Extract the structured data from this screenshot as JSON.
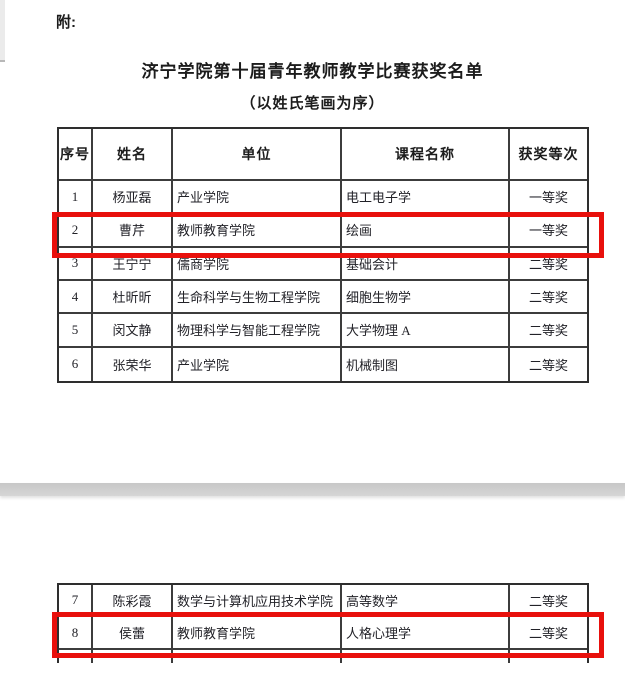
{
  "page": {
    "attachment_label": "附:",
    "title": "济宁学院第十届青年教师教学比赛获奖名单",
    "subtitle": "（以姓氏笔画为序）"
  },
  "table1": {
    "headers": [
      "序号",
      "姓名",
      "单位",
      "课程名称",
      "获奖等次"
    ],
    "rows": [
      {
        "no": "1",
        "name": "杨亚磊",
        "unit": "产业学院",
        "course": "电工电子学",
        "award": "一等奖",
        "highlighted": false
      },
      {
        "no": "2",
        "name": "曹芹",
        "unit": "教师教育学院",
        "course": "绘画",
        "award": "一等奖",
        "highlighted": true
      },
      {
        "no": "3",
        "name": "王宁宁",
        "unit": "儒商学院",
        "course": "基础会计",
        "award": "二等奖",
        "highlighted": false
      },
      {
        "no": "4",
        "name": "杜昕昕",
        "unit": "生命科学与生物工程学院",
        "course": "细胞生物学",
        "award": "二等奖",
        "highlighted": false
      },
      {
        "no": "5",
        "name": "闵文静",
        "unit": "物理科学与智能工程学院",
        "course": "大学物理 A",
        "award": "二等奖",
        "highlighted": false
      },
      {
        "no": "6",
        "name": "张荣华",
        "unit": "产业学院",
        "course": "机械制图",
        "award": "二等奖",
        "highlighted": false
      }
    ]
  },
  "table2": {
    "rows": [
      {
        "no": "7",
        "name": "陈彩霞",
        "unit": "数学与计算机应用技术学院",
        "course": "高等数学",
        "award": "二等奖",
        "highlighted": false
      },
      {
        "no": "8",
        "name": "侯蕾",
        "unit": "教师教育学院",
        "course": "人格心理学",
        "award": "二等奖",
        "highlighted": true
      }
    ]
  },
  "colors": {
    "highlight_border": "#e8100c",
    "separator_bar": "#cfcfcf",
    "table_border": "#2e2e2e"
  }
}
